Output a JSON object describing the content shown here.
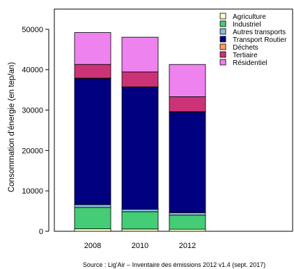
{
  "chart_data": {
    "type": "bar",
    "stacked": true,
    "ylabel": "Consommation d'énergie (en tep/an)",
    "xlabel": "",
    "categories": [
      "2008",
      "2010",
      "2012"
    ],
    "ylim": [
      0,
      55000
    ],
    "yticks": [
      0,
      10000,
      20000,
      30000,
      40000,
      50000
    ],
    "ytick_labels": [
      "0",
      "10000",
      "20000",
      "30000",
      "40000",
      "50000"
    ],
    "grid": false,
    "legend_position": "top-right",
    "series": [
      {
        "name": "Agriculture",
        "color": "#FFFFCC",
        "values": [
          600,
          550,
          500
        ]
      },
      {
        "name": "Industriel",
        "color": "#44CC77",
        "values": [
          5300,
          4300,
          3500
        ]
      },
      {
        "name": "Autres transports",
        "color": "#88BBDD",
        "values": [
          700,
          600,
          600
        ]
      },
      {
        "name": "Transport Routier",
        "color": "#000080",
        "values": [
          31200,
          30200,
          24900
        ]
      },
      {
        "name": "Déchets",
        "color": "#FFA060",
        "values": [
          100,
          100,
          100
        ]
      },
      {
        "name": "Tertiaire",
        "color": "#CC3377",
        "values": [
          3400,
          3700,
          3700
        ]
      },
      {
        "name": "Résidentiel",
        "color": "#EE82EE",
        "values": [
          7900,
          8600,
          8000
        ]
      }
    ],
    "source": "Source : Lig'Air – Inventaire des émissions 2012 v1.4 (sept. 2017)"
  }
}
